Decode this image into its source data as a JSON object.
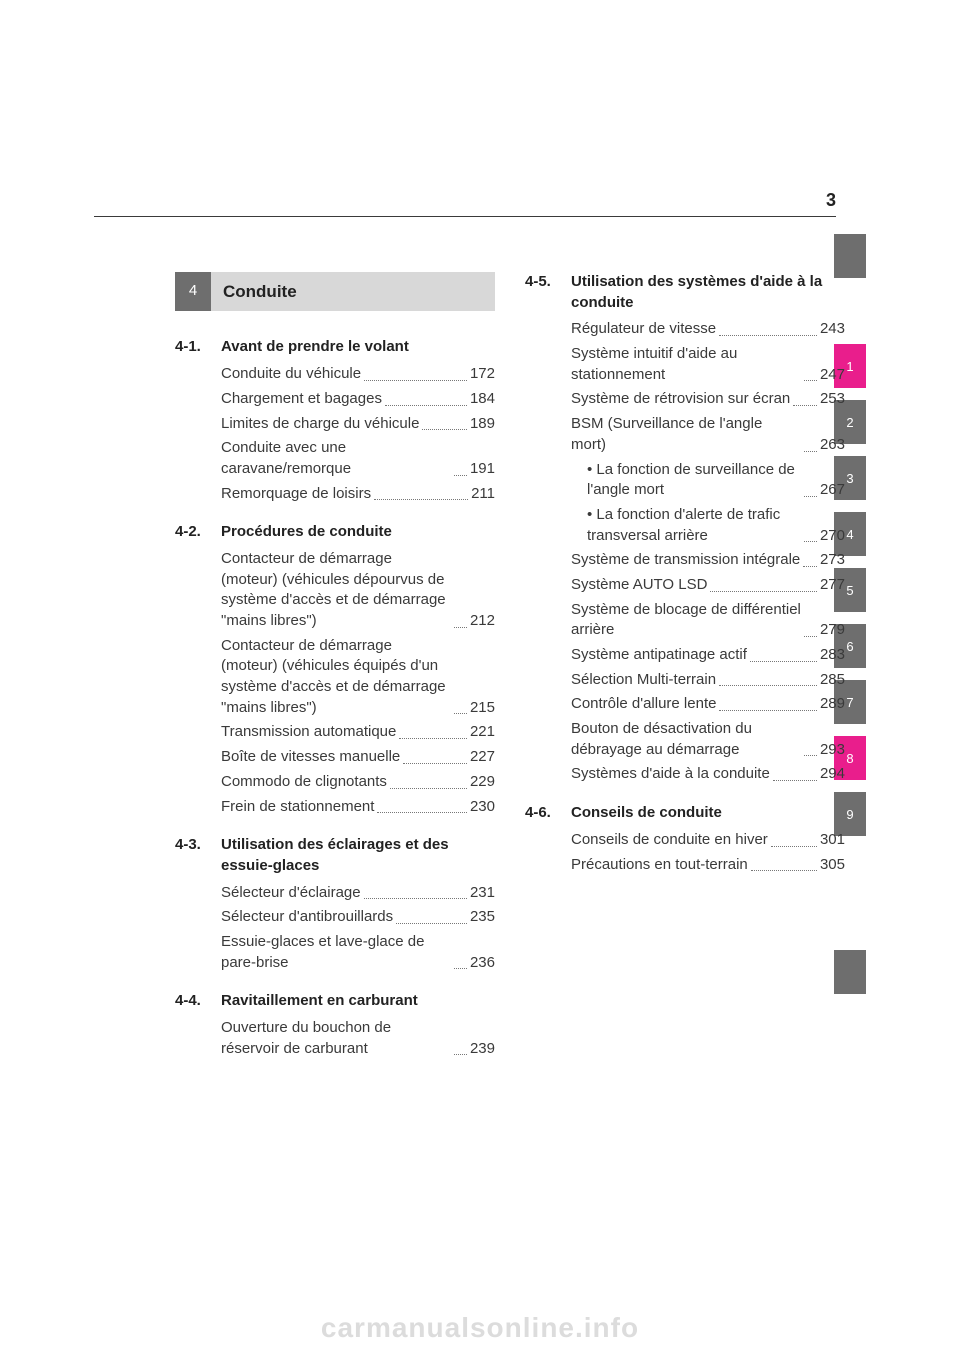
{
  "page_number": "3",
  "chapter": {
    "number": "4",
    "title": "Conduite"
  },
  "sections_left": [
    {
      "num": "4-1.",
      "title": "Avant de prendre le volant",
      "items": [
        {
          "label": "Conduite du véhicule",
          "page": "172"
        },
        {
          "label": "Chargement et bagages",
          "page": "184"
        },
        {
          "label": "Limites de charge du véhicule",
          "page": "189"
        },
        {
          "label": "Conduite avec une caravane/remorque",
          "page": "191"
        },
        {
          "label": "Remorquage de loisirs",
          "page": "211"
        }
      ]
    },
    {
      "num": "4-2.",
      "title": "Procédures de conduite",
      "items": [
        {
          "label": "Contacteur de démarrage (moteur) (véhicules dépourvus de système d'accès et de démarrage \"mains libres\")",
          "page": "212"
        },
        {
          "label": "Contacteur de démarrage (moteur) (véhicules équipés d'un système d'accès et de démarrage \"mains libres\")",
          "page": "215"
        },
        {
          "label": "Transmission automatique",
          "page": "221"
        },
        {
          "label": "Boîte de vitesses manuelle",
          "page": "227"
        },
        {
          "label": "Commodo de clignotants",
          "page": "229"
        },
        {
          "label": "Frein de stationnement",
          "page": "230"
        }
      ]
    },
    {
      "num": "4-3.",
      "title": "Utilisation des éclairages et des essuie-glaces",
      "items": [
        {
          "label": "Sélecteur d'éclairage",
          "page": "231"
        },
        {
          "label": "Sélecteur d'antibrouillards",
          "page": "235"
        },
        {
          "label": "Essuie-glaces et lave-glace de pare-brise",
          "page": "236"
        }
      ]
    },
    {
      "num": "4-4.",
      "title": "Ravitaillement en carburant",
      "items": [
        {
          "label": "Ouverture du bouchon de réservoir de carburant",
          "page": "239"
        }
      ]
    }
  ],
  "sections_right": [
    {
      "num": "4-5.",
      "title": "Utilisation des systèmes d'aide à la conduite",
      "items": [
        {
          "label": "Régulateur de vitesse",
          "page": "243"
        },
        {
          "label": "Système intuitif d'aide au stationnement",
          "page": "247"
        },
        {
          "label": "Système de rétrovision sur écran",
          "page": "253"
        },
        {
          "label": "BSM (Surveillance de l'angle mort)",
          "page": "263"
        },
        {
          "label": "• La fonction de surveillance de l'angle mort",
          "page": "267",
          "sub": true
        },
        {
          "label": "• La fonction d'alerte de trafic transversal arrière",
          "page": "270",
          "sub": true
        },
        {
          "label": "Système de transmission intégrale",
          "page": "273"
        },
        {
          "label": "Système AUTO LSD",
          "page": "277"
        },
        {
          "label": "Système de blocage de différentiel arrière",
          "page": "279"
        },
        {
          "label": "Système antipatinage actif",
          "page": "283"
        },
        {
          "label": "Sélection Multi-terrain",
          "page": "285"
        },
        {
          "label": "Contrôle d'allure lente",
          "page": "289"
        },
        {
          "label": "Bouton de désactivation du débrayage au démarrage",
          "page": "293"
        },
        {
          "label": "Systèmes d'aide à la conduite",
          "page": "294"
        }
      ]
    },
    {
      "num": "4-6.",
      "title": "Conseils de conduite",
      "items": [
        {
          "label": "Conseils de conduite en hiver",
          "page": "301"
        },
        {
          "label": "Précautions en tout-terrain",
          "page": "305"
        }
      ]
    }
  ],
  "thumbs": {
    "accent_color": "#e91e8c",
    "normal_color": "#6e6e6e",
    "top_blank": "",
    "tabs": [
      {
        "label": "1",
        "accent": true
      },
      {
        "label": "2",
        "accent": false
      },
      {
        "label": "3",
        "accent": false
      },
      {
        "label": "4",
        "accent": false
      },
      {
        "label": "5",
        "accent": false
      },
      {
        "label": "6",
        "accent": false
      },
      {
        "label": "7",
        "accent": false
      },
      {
        "label": "8",
        "accent": true
      },
      {
        "label": "9",
        "accent": false
      }
    ],
    "bottom_blank": ""
  },
  "watermark": "carmanualsonline.info"
}
